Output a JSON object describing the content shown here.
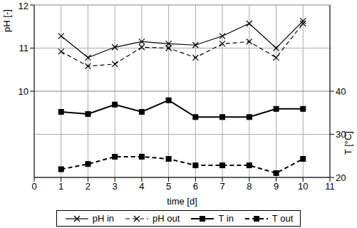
{
  "chart_data": {
    "type": "line",
    "x": [
      1,
      2,
      3,
      4,
      5,
      6,
      7,
      8,
      9,
      10
    ],
    "xlabel": "time [d]",
    "ylabel": "pH [-]",
    "y2label": "T [°C]",
    "xlim": [
      0,
      11
    ],
    "xticks": [
      0,
      1,
      2,
      3,
      4,
      5,
      6,
      7,
      8,
      9,
      10,
      11
    ],
    "ylim": [
      8,
      12
    ],
    "yticks": [
      10,
      11,
      12
    ],
    "y2lim": [
      20,
      60
    ],
    "y2ticks": [
      20,
      30,
      40
    ],
    "grid": true,
    "legend": "bottom",
    "series": [
      {
        "name": "pH in",
        "color": "#000000",
        "marker": "x",
        "line_style": "solid",
        "values": [
          11.28,
          10.78,
          11.02,
          11.15,
          11.1,
          11.07,
          11.28,
          11.57,
          11.0,
          11.63
        ]
      },
      {
        "name": "pH out",
        "color": "#000000",
        "marker": "x",
        "line_style": "dashed",
        "values": [
          10.92,
          10.58,
          10.63,
          11.02,
          11.0,
          10.78,
          11.1,
          11.15,
          10.78,
          11.57
        ]
      },
      {
        "name": "T in",
        "color": "#000000",
        "marker": "square",
        "line_style": "solid",
        "axis": "y2",
        "values": [
          35.2,
          34.7,
          36.9,
          35.2,
          37.9,
          34.0,
          34.0,
          34.0,
          35.9,
          35.9
        ]
      },
      {
        "name": "T out",
        "color": "#000000",
        "marker": "square",
        "line_style": "dashed",
        "axis": "y2",
        "values": [
          21.9,
          23.1,
          24.8,
          24.8,
          24.3,
          22.8,
          22.8,
          22.8,
          21.0,
          24.3
        ]
      }
    ]
  }
}
